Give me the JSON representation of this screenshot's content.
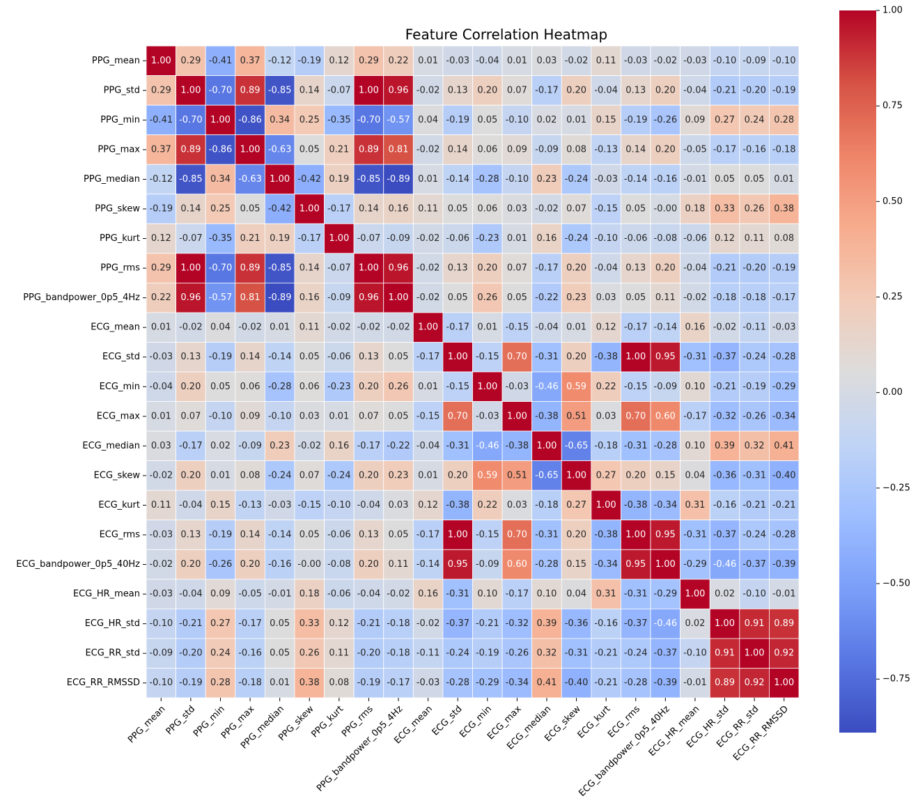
{
  "chart_data": {
    "type": "heatmap",
    "title": "Feature Correlation Heatmap",
    "categories": [
      "PPG_mean",
      "PPG_std",
      "PPG_min",
      "PPG_max",
      "PPG_median",
      "PPG_skew",
      "PPG_kurt",
      "PPG_rms",
      "PPG_bandpower_0p5_4Hz",
      "ECG_mean",
      "ECG_std",
      "ECG_min",
      "ECG_max",
      "ECG_median",
      "ECG_skew",
      "ECG_kurt",
      "ECG_rms",
      "ECG_bandpower_0p5_40Hz",
      "ECG_HR_mean",
      "ECG_HR_std",
      "ECG_RR_std",
      "ECG_RR_RMSSD"
    ],
    "values": [
      [
        1,
        0.29,
        -0.41,
        0.37,
        -0.12,
        -0.19,
        0.12,
        0.29,
        0.22,
        0.01,
        -0.03,
        -0.04,
        0.01,
        0.03,
        -0.02,
        0.11,
        -0.03,
        -0.02,
        -0.03,
        -0.1,
        -0.09,
        -0.1
      ],
      [
        0.29,
        1,
        -0.7,
        0.89,
        -0.85,
        0.14,
        -0.07,
        1,
        0.96,
        -0.02,
        0.13,
        0.2,
        0.07,
        -0.17,
        0.2,
        -0.04,
        0.13,
        0.2,
        -0.04,
        -0.21,
        -0.2,
        -0.19
      ],
      [
        -0.41,
        -0.7,
        1,
        -0.86,
        0.34,
        0.25,
        -0.35,
        -0.7,
        -0.57,
        0.04,
        -0.19,
        0.05,
        -0.1,
        0.02,
        0.01,
        0.15,
        -0.19,
        -0.26,
        0.09,
        0.27,
        0.24,
        0.28
      ],
      [
        0.37,
        0.89,
        -0.86,
        1,
        -0.63,
        0.05,
        0.21,
        0.89,
        0.81,
        -0.02,
        0.14,
        0.06,
        0.09,
        -0.09,
        0.08,
        -0.13,
        0.14,
        0.2,
        -0.05,
        -0.17,
        -0.16,
        -0.18
      ],
      [
        -0.12,
        -0.85,
        0.34,
        -0.63,
        1,
        -0.42,
        0.19,
        -0.85,
        -0.89,
        0.01,
        -0.14,
        -0.28,
        -0.1,
        0.23,
        -0.24,
        -0.03,
        -0.14,
        -0.16,
        -0.01,
        0.05,
        0.05,
        0.01
      ],
      [
        -0.19,
        0.14,
        0.25,
        0.05,
        -0.42,
        1,
        -0.17,
        0.14,
        0.16,
        0.11,
        0.05,
        0.06,
        0.03,
        -0.02,
        0.07,
        -0.15,
        0.05,
        0,
        0.18,
        0.33,
        0.26,
        0.38
      ],
      [
        0.12,
        -0.07,
        -0.35,
        0.21,
        0.19,
        -0.17,
        1,
        -0.07,
        -0.09,
        -0.02,
        -0.06,
        -0.23,
        0.01,
        0.16,
        -0.24,
        -0.1,
        -0.06,
        -0.08,
        -0.06,
        0.12,
        0.11,
        0.08
      ],
      [
        0.29,
        1,
        -0.7,
        0.89,
        -0.85,
        0.14,
        -0.07,
        1,
        0.96,
        -0.02,
        0.13,
        0.2,
        0.07,
        -0.17,
        0.2,
        -0.04,
        0.13,
        0.2,
        -0.04,
        -0.21,
        -0.2,
        -0.19
      ],
      [
        0.22,
        0.96,
        -0.57,
        0.81,
        -0.89,
        0.16,
        -0.09,
        0.96,
        1,
        -0.02,
        0.05,
        0.26,
        0.05,
        -0.22,
        0.23,
        0.03,
        0.05,
        0.11,
        -0.02,
        -0.18,
        -0.18,
        -0.17
      ],
      [
        0.01,
        -0.02,
        0.04,
        -0.02,
        0.01,
        0.11,
        -0.02,
        -0.02,
        -0.02,
        1,
        -0.17,
        0.01,
        -0.15,
        -0.04,
        0.01,
        0.12,
        -0.17,
        -0.14,
        0.16,
        -0.02,
        -0.11,
        -0.03
      ],
      [
        -0.03,
        0.13,
        -0.19,
        0.14,
        -0.14,
        0.05,
        -0.06,
        0.13,
        0.05,
        -0.17,
        1,
        -0.15,
        0.7,
        -0.31,
        0.2,
        -0.38,
        1,
        0.95,
        -0.31,
        -0.37,
        -0.24,
        -0.28
      ],
      [
        -0.04,
        0.2,
        0.05,
        0.06,
        -0.28,
        0.06,
        -0.23,
        0.2,
        0.26,
        0.01,
        -0.15,
        1,
        -0.03,
        -0.46,
        0.59,
        0.22,
        -0.15,
        -0.09,
        0.1,
        -0.21,
        -0.19,
        -0.29
      ],
      [
        0.01,
        0.07,
        -0.1,
        0.09,
        -0.1,
        0.03,
        0.01,
        0.07,
        0.05,
        -0.15,
        0.7,
        -0.03,
        1,
        -0.38,
        0.51,
        0.03,
        0.7,
        0.6,
        -0.17,
        -0.32,
        -0.26,
        -0.34
      ],
      [
        0.03,
        -0.17,
        0.02,
        -0.09,
        0.23,
        -0.02,
        0.16,
        -0.17,
        -0.22,
        -0.04,
        -0.31,
        -0.46,
        -0.38,
        1,
        -0.65,
        -0.18,
        -0.31,
        -0.28,
        0.1,
        0.39,
        0.32,
        0.41
      ],
      [
        -0.02,
        0.2,
        0.01,
        0.08,
        -0.24,
        0.07,
        -0.24,
        0.2,
        0.23,
        0.01,
        0.2,
        0.59,
        0.51,
        -0.65,
        1,
        0.27,
        0.2,
        0.15,
        0.04,
        -0.36,
        -0.31,
        -0.4
      ],
      [
        0.11,
        -0.04,
        0.15,
        -0.13,
        -0.03,
        -0.15,
        -0.1,
        -0.04,
        0.03,
        0.12,
        -0.38,
        0.22,
        0.03,
        -0.18,
        0.27,
        1,
        -0.38,
        -0.34,
        0.31,
        -0.16,
        -0.21,
        -0.21
      ],
      [
        -0.03,
        0.13,
        -0.19,
        0.14,
        -0.14,
        0.05,
        -0.06,
        0.13,
        0.05,
        -0.17,
        1,
        -0.15,
        0.7,
        -0.31,
        0.2,
        -0.38,
        1,
        0.95,
        -0.31,
        -0.37,
        -0.24,
        -0.28
      ],
      [
        -0.02,
        0.2,
        -0.26,
        0.2,
        -0.16,
        0,
        -0.08,
        0.2,
        0.11,
        -0.14,
        0.95,
        -0.09,
        0.6,
        -0.28,
        0.15,
        -0.34,
        0.95,
        1,
        -0.29,
        -0.46,
        -0.37,
        -0.39
      ],
      [
        -0.03,
        -0.04,
        0.09,
        -0.05,
        -0.01,
        0.18,
        -0.06,
        -0.04,
        -0.02,
        0.16,
        -0.31,
        0.1,
        -0.17,
        0.1,
        0.04,
        0.31,
        -0.31,
        -0.29,
        1,
        0.02,
        -0.1,
        -0.01
      ],
      [
        -0.1,
        -0.21,
        0.27,
        -0.17,
        0.05,
        0.33,
        0.12,
        -0.21,
        -0.18,
        -0.02,
        -0.37,
        -0.21,
        -0.32,
        0.39,
        -0.36,
        -0.16,
        -0.37,
        -0.46,
        0.02,
        1,
        0.91,
        0.89
      ],
      [
        -0.09,
        -0.2,
        0.24,
        -0.16,
        0.05,
        0.26,
        0.11,
        -0.2,
        -0.18,
        -0.11,
        -0.24,
        -0.19,
        -0.26,
        0.32,
        -0.31,
        -0.21,
        -0.24,
        -0.37,
        -0.1,
        0.91,
        1,
        0.92
      ],
      [
        -0.1,
        -0.19,
        0.28,
        -0.18,
        0.01,
        0.38,
        0.08,
        -0.19,
        -0.17,
        -0.03,
        -0.28,
        -0.29,
        -0.34,
        0.41,
        -0.4,
        -0.21,
        -0.28,
        -0.39,
        -0.01,
        0.89,
        0.92,
        1
      ]
    ],
    "value_labels": [
      [
        "1.00",
        "0.29",
        "-0.41",
        "0.37",
        "-0.12",
        "-0.19",
        "0.12",
        "0.29",
        "0.22",
        "0.01",
        "-0.03",
        "-0.04",
        "0.01",
        "0.03",
        "-0.02",
        "0.11",
        "-0.03",
        "-0.02",
        "-0.03",
        "-0.10",
        "-0.09",
        "-0.10"
      ],
      [
        "0.29",
        "1.00",
        "-0.70",
        "0.89",
        "-0.85",
        "0.14",
        "-0.07",
        "1.00",
        "0.96",
        "-0.02",
        "0.13",
        "0.20",
        "0.07",
        "-0.17",
        "0.20",
        "-0.04",
        "0.13",
        "0.20",
        "-0.04",
        "-0.21",
        "-0.20",
        "-0.19"
      ],
      [
        "-0.41",
        "-0.70",
        "1.00",
        "-0.86",
        "0.34",
        "0.25",
        "-0.35",
        "-0.70",
        "-0.57",
        "0.04",
        "-0.19",
        "0.05",
        "-0.10",
        "0.02",
        "0.01",
        "0.15",
        "-0.19",
        "-0.26",
        "0.09",
        "0.27",
        "0.24",
        "0.28"
      ],
      [
        "0.37",
        "0.89",
        "-0.86",
        "1.00",
        "-0.63",
        "0.05",
        "0.21",
        "0.89",
        "0.81",
        "-0.02",
        "0.14",
        "0.06",
        "0.09",
        "-0.09",
        "0.08",
        "-0.13",
        "0.14",
        "0.20",
        "-0.05",
        "-0.17",
        "-0.16",
        "-0.18"
      ],
      [
        "-0.12",
        "-0.85",
        "0.34",
        "-0.63",
        "1.00",
        "-0.42",
        "0.19",
        "-0.85",
        "-0.89",
        "0.01",
        "-0.14",
        "-0.28",
        "-0.10",
        "0.23",
        "-0.24",
        "-0.03",
        "-0.14",
        "-0.16",
        "-0.01",
        "0.05",
        "0.05",
        "0.01"
      ],
      [
        "-0.19",
        "0.14",
        "0.25",
        "0.05",
        "-0.42",
        "1.00",
        "-0.17",
        "0.14",
        "0.16",
        "0.11",
        "0.05",
        "0.06",
        "0.03",
        "-0.02",
        "0.07",
        "-0.15",
        "0.05",
        "-0.00",
        "0.18",
        "0.33",
        "0.26",
        "0.38"
      ],
      [
        "0.12",
        "-0.07",
        "-0.35",
        "0.21",
        "0.19",
        "-0.17",
        "1.00",
        "-0.07",
        "-0.09",
        "-0.02",
        "-0.06",
        "-0.23",
        "0.01",
        "0.16",
        "-0.24",
        "-0.10",
        "-0.06",
        "-0.08",
        "-0.06",
        "0.12",
        "0.11",
        "0.08"
      ],
      [
        "0.29",
        "1.00",
        "-0.70",
        "0.89",
        "-0.85",
        "0.14",
        "-0.07",
        "1.00",
        "0.96",
        "-0.02",
        "0.13",
        "0.20",
        "0.07",
        "-0.17",
        "0.20",
        "-0.04",
        "0.13",
        "0.20",
        "-0.04",
        "-0.21",
        "-0.20",
        "-0.19"
      ],
      [
        "0.22",
        "0.96",
        "-0.57",
        "0.81",
        "-0.89",
        "0.16",
        "-0.09",
        "0.96",
        "1.00",
        "-0.02",
        "0.05",
        "0.26",
        "0.05",
        "-0.22",
        "0.23",
        "0.03",
        "0.05",
        "0.11",
        "-0.02",
        "-0.18",
        "-0.18",
        "-0.17"
      ],
      [
        "0.01",
        "-0.02",
        "0.04",
        "-0.02",
        "0.01",
        "0.11",
        "-0.02",
        "-0.02",
        "-0.02",
        "1.00",
        "-0.17",
        "0.01",
        "-0.15",
        "-0.04",
        "0.01",
        "0.12",
        "-0.17",
        "-0.14",
        "0.16",
        "-0.02",
        "-0.11",
        "-0.03"
      ],
      [
        "-0.03",
        "0.13",
        "-0.19",
        "0.14",
        "-0.14",
        "0.05",
        "-0.06",
        "0.13",
        "0.05",
        "-0.17",
        "1.00",
        "-0.15",
        "0.70",
        "-0.31",
        "0.20",
        "-0.38",
        "1.00",
        "0.95",
        "-0.31",
        "-0.37",
        "-0.24",
        "-0.28"
      ],
      [
        "-0.04",
        "0.20",
        "0.05",
        "0.06",
        "-0.28",
        "0.06",
        "-0.23",
        "0.20",
        "0.26",
        "0.01",
        "-0.15",
        "1.00",
        "-0.03",
        "-0.46",
        "0.59",
        "0.22",
        "-0.15",
        "-0.09",
        "0.10",
        "-0.21",
        "-0.19",
        "-0.29"
      ],
      [
        "0.01",
        "0.07",
        "-0.10",
        "0.09",
        "-0.10",
        "0.03",
        "0.01",
        "0.07",
        "0.05",
        "-0.15",
        "0.70",
        "-0.03",
        "1.00",
        "-0.38",
        "0.51",
        "0.03",
        "0.70",
        "0.60",
        "-0.17",
        "-0.32",
        "-0.26",
        "-0.34"
      ],
      [
        "0.03",
        "-0.17",
        "0.02",
        "-0.09",
        "0.23",
        "-0.02",
        "0.16",
        "-0.17",
        "-0.22",
        "-0.04",
        "-0.31",
        "-0.46",
        "-0.38",
        "1.00",
        "-0.65",
        "-0.18",
        "-0.31",
        "-0.28",
        "0.10",
        "0.39",
        "0.32",
        "0.41"
      ],
      [
        "-0.02",
        "0.20",
        "0.01",
        "0.08",
        "-0.24",
        "0.07",
        "-0.24",
        "0.20",
        "0.23",
        "0.01",
        "0.20",
        "0.59",
        "0.51",
        "-0.65",
        "1.00",
        "0.27",
        "0.20",
        "0.15",
        "0.04",
        "-0.36",
        "-0.31",
        "-0.40"
      ],
      [
        "0.11",
        "-0.04",
        "0.15",
        "-0.13",
        "-0.03",
        "-0.15",
        "-0.10",
        "-0.04",
        "0.03",
        "0.12",
        "-0.38",
        "0.22",
        "0.03",
        "-0.18",
        "0.27",
        "1.00",
        "-0.38",
        "-0.34",
        "0.31",
        "-0.16",
        "-0.21",
        "-0.21"
      ],
      [
        "-0.03",
        "0.13",
        "-0.19",
        "0.14",
        "-0.14",
        "0.05",
        "-0.06",
        "0.13",
        "0.05",
        "-0.17",
        "1.00",
        "-0.15",
        "0.70",
        "-0.31",
        "0.20",
        "-0.38",
        "1.00",
        "0.95",
        "-0.31",
        "-0.37",
        "-0.24",
        "-0.28"
      ],
      [
        "-0.02",
        "0.20",
        "-0.26",
        "0.20",
        "-0.16",
        "-0.00",
        "-0.08",
        "0.20",
        "0.11",
        "-0.14",
        "0.95",
        "-0.09",
        "0.60",
        "-0.28",
        "0.15",
        "-0.34",
        "0.95",
        "1.00",
        "-0.29",
        "-0.46",
        "-0.37",
        "-0.39"
      ],
      [
        "-0.03",
        "-0.04",
        "0.09",
        "-0.05",
        "-0.01",
        "0.18",
        "-0.06",
        "-0.04",
        "-0.02",
        "0.16",
        "-0.31",
        "0.10",
        "-0.17",
        "0.10",
        "0.04",
        "0.31",
        "-0.31",
        "-0.29",
        "1.00",
        "0.02",
        "-0.10",
        "-0.01"
      ],
      [
        "-0.10",
        "-0.21",
        "0.27",
        "-0.17",
        "0.05",
        "0.33",
        "0.12",
        "-0.21",
        "-0.18",
        "-0.02",
        "-0.37",
        "-0.21",
        "-0.32",
        "0.39",
        "-0.36",
        "-0.16",
        "-0.37",
        "-0.46",
        "0.02",
        "1.00",
        "0.91",
        "0.89"
      ],
      [
        "-0.09",
        "-0.20",
        "0.24",
        "-0.16",
        "0.05",
        "0.26",
        "0.11",
        "-0.20",
        "-0.18",
        "-0.11",
        "-0.24",
        "-0.19",
        "-0.26",
        "0.32",
        "-0.31",
        "-0.21",
        "-0.24",
        "-0.37",
        "-0.10",
        "0.91",
        "1.00",
        "0.92"
      ],
      [
        "-0.10",
        "-0.19",
        "0.28",
        "-0.18",
        "0.01",
        "0.38",
        "0.08",
        "-0.19",
        "-0.17",
        "-0.03",
        "-0.28",
        "-0.29",
        "-0.34",
        "0.41",
        "-0.40",
        "-0.21",
        "-0.28",
        "-0.39",
        "-0.01",
        "0.89",
        "0.92",
        "1.00"
      ]
    ],
    "clim": [
      -0.89,
      1
    ],
    "cticks": [
      {
        "value": -0.75,
        "label": "−0.75"
      },
      {
        "value": -0.5,
        "label": "−0.50"
      },
      {
        "value": -0.25,
        "label": "−0.25"
      },
      {
        "value": 0,
        "label": "0.00"
      },
      {
        "value": 0.25,
        "label": "0.25"
      },
      {
        "value": 0.5,
        "label": "0.50"
      },
      {
        "value": 0.75,
        "label": "0.75"
      },
      {
        "value": 1,
        "label": "1.00"
      }
    ],
    "colors": [
      "#3b4cc0",
      "#5977e3",
      "#7b9ff9",
      "#9ebeff",
      "#c0d4f5",
      "#dddcdc",
      "#f2cbb7",
      "#f7ac8e",
      "#ee8468",
      "#d65244",
      "#b40426"
    ]
  }
}
